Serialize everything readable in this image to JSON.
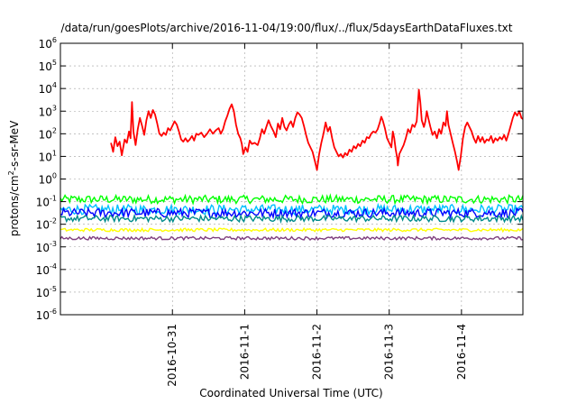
{
  "chart_data": {
    "type": "line",
    "title": "/data/run/goesPlots/archive/2016-11-04/19:00/flux/../flux/5daysEarthDataFluxes.txt",
    "xlabel": "Coordinated Universal Time (UTC)",
    "ylabel": {
      "prefix": "protons/cm",
      "sup": "2",
      "suffix": "-s-sr-MeV"
    },
    "y_scale": "log",
    "ylim_exp": [
      -6,
      6
    ],
    "y_tick_exponents": [
      -6,
      -5,
      -4,
      -3,
      -2,
      -1,
      0,
      1,
      2,
      3,
      4,
      5,
      6
    ],
    "y_tick_base": "10",
    "x_range_days": [
      -1.55,
      4.85
    ],
    "x_ticks": [
      {
        "label": "2016-10-31",
        "day": 0
      },
      {
        "label": "2016-11-1",
        "day": 1
      },
      {
        "label": "2016-11-2",
        "day": 2
      },
      {
        "label": "2016-11-3",
        "day": 3
      },
      {
        "label": "2016-11-4",
        "day": 4
      }
    ],
    "grid": true,
    "series": [
      {
        "color": "#ff0000",
        "points": [
          [
            -0.85,
            1.6
          ],
          [
            -0.82,
            1.2
          ],
          [
            -0.79,
            1.85
          ],
          [
            -0.76,
            1.45
          ],
          [
            -0.73,
            1.65
          ],
          [
            -0.7,
            1.05
          ],
          [
            -0.66,
            1.75
          ],
          [
            -0.63,
            1.6
          ],
          [
            -0.6,
            2.1
          ],
          [
            -0.58,
            1.8
          ],
          [
            -0.56,
            3.4
          ],
          [
            -0.54,
            2.1
          ],
          [
            -0.51,
            1.5
          ],
          [
            -0.48,
            2.2
          ],
          [
            -0.45,
            2.7
          ],
          [
            -0.42,
            2.35
          ],
          [
            -0.39,
            1.95
          ],
          [
            -0.36,
            2.6
          ],
          [
            -0.33,
            3.0
          ],
          [
            -0.3,
            2.7
          ],
          [
            -0.27,
            3.05
          ],
          [
            -0.24,
            2.85
          ],
          [
            -0.21,
            2.45
          ],
          [
            -0.18,
            2.0
          ],
          [
            -0.15,
            1.9
          ],
          [
            -0.12,
            2.05
          ],
          [
            -0.09,
            1.95
          ],
          [
            -0.06,
            2.25
          ],
          [
            -0.03,
            2.15
          ],
          [
            0.0,
            2.35
          ],
          [
            0.03,
            2.55
          ],
          [
            0.06,
            2.4
          ],
          [
            0.09,
            2.1
          ],
          [
            0.12,
            1.75
          ],
          [
            0.15,
            1.65
          ],
          [
            0.18,
            1.8
          ],
          [
            0.21,
            1.65
          ],
          [
            0.24,
            1.75
          ],
          [
            0.27,
            1.9
          ],
          [
            0.3,
            1.7
          ],
          [
            0.33,
            2.0
          ],
          [
            0.36,
            1.95
          ],
          [
            0.4,
            2.05
          ],
          [
            0.44,
            1.85
          ],
          [
            0.48,
            2.0
          ],
          [
            0.52,
            2.2
          ],
          [
            0.56,
            2.0
          ],
          [
            0.6,
            2.15
          ],
          [
            0.64,
            2.25
          ],
          [
            0.67,
            2.0
          ],
          [
            0.7,
            2.2
          ],
          [
            0.73,
            2.55
          ],
          [
            0.76,
            2.8
          ],
          [
            0.79,
            3.1
          ],
          [
            0.82,
            3.3
          ],
          [
            0.85,
            3.0
          ],
          [
            0.88,
            2.4
          ],
          [
            0.91,
            2.0
          ],
          [
            0.94,
            1.8
          ],
          [
            0.96,
            1.55
          ],
          [
            0.98,
            1.1
          ],
          [
            1.01,
            1.4
          ],
          [
            1.04,
            1.2
          ],
          [
            1.07,
            1.7
          ],
          [
            1.1,
            1.55
          ],
          [
            1.14,
            1.6
          ],
          [
            1.18,
            1.5
          ],
          [
            1.21,
            1.8
          ],
          [
            1.24,
            2.2
          ],
          [
            1.27,
            2.0
          ],
          [
            1.3,
            2.3
          ],
          [
            1.33,
            2.6
          ],
          [
            1.36,
            2.35
          ],
          [
            1.4,
            2.1
          ],
          [
            1.43,
            1.85
          ],
          [
            1.46,
            2.45
          ],
          [
            1.49,
            2.2
          ],
          [
            1.52,
            2.7
          ],
          [
            1.55,
            2.3
          ],
          [
            1.58,
            2.15
          ],
          [
            1.61,
            2.4
          ],
          [
            1.64,
            2.55
          ],
          [
            1.67,
            2.3
          ],
          [
            1.7,
            2.7
          ],
          [
            1.73,
            2.95
          ],
          [
            1.76,
            2.85
          ],
          [
            1.79,
            2.7
          ],
          [
            1.82,
            2.35
          ],
          [
            1.85,
            1.95
          ],
          [
            1.88,
            1.6
          ],
          [
            1.91,
            1.4
          ],
          [
            1.94,
            1.2
          ],
          [
            1.97,
            0.8
          ],
          [
            2.0,
            0.4
          ],
          [
            2.03,
            1.1
          ],
          [
            2.06,
            1.6
          ],
          [
            2.09,
            2.0
          ],
          [
            2.12,
            2.5
          ],
          [
            2.15,
            2.1
          ],
          [
            2.18,
            2.3
          ],
          [
            2.21,
            1.8
          ],
          [
            2.24,
            1.4
          ],
          [
            2.27,
            1.2
          ],
          [
            2.3,
            1.0
          ],
          [
            2.33,
            1.1
          ],
          [
            2.36,
            0.95
          ],
          [
            2.39,
            1.15
          ],
          [
            2.42,
            1.05
          ],
          [
            2.45,
            1.3
          ],
          [
            2.48,
            1.2
          ],
          [
            2.51,
            1.45
          ],
          [
            2.54,
            1.35
          ],
          [
            2.57,
            1.55
          ],
          [
            2.6,
            1.45
          ],
          [
            2.63,
            1.7
          ],
          [
            2.66,
            1.6
          ],
          [
            2.69,
            1.85
          ],
          [
            2.72,
            1.8
          ],
          [
            2.75,
            2.0
          ],
          [
            2.78,
            2.1
          ],
          [
            2.81,
            2.05
          ],
          [
            2.84,
            2.2
          ],
          [
            2.87,
            2.5
          ],
          [
            2.89,
            2.75
          ],
          [
            2.91,
            2.6
          ],
          [
            2.94,
            2.25
          ],
          [
            2.97,
            1.8
          ],
          [
            3.0,
            1.6
          ],
          [
            3.03,
            1.4
          ],
          [
            3.05,
            2.1
          ],
          [
            3.07,
            1.8
          ],
          [
            3.09,
            1.3
          ],
          [
            3.11,
            0.95
          ],
          [
            3.12,
            0.6
          ],
          [
            3.14,
            1.1
          ],
          [
            3.17,
            1.3
          ],
          [
            3.2,
            1.5
          ],
          [
            3.23,
            1.8
          ],
          [
            3.26,
            2.2
          ],
          [
            3.29,
            2.05
          ],
          [
            3.32,
            2.4
          ],
          [
            3.35,
            2.3
          ],
          [
            3.38,
            2.55
          ],
          [
            3.41,
            3.95
          ],
          [
            3.43,
            3.4
          ],
          [
            3.45,
            2.6
          ],
          [
            3.48,
            2.3
          ],
          [
            3.5,
            2.55
          ],
          [
            3.52,
            3.0
          ],
          [
            3.54,
            2.7
          ],
          [
            3.57,
            2.3
          ],
          [
            3.6,
            1.95
          ],
          [
            3.63,
            2.1
          ],
          [
            3.66,
            1.8
          ],
          [
            3.69,
            2.2
          ],
          [
            3.72,
            2.0
          ],
          [
            3.75,
            2.5
          ],
          [
            3.78,
            2.35
          ],
          [
            3.8,
            3.0
          ],
          [
            3.82,
            2.4
          ],
          [
            3.85,
            2.0
          ],
          [
            3.88,
            1.6
          ],
          [
            3.91,
            1.2
          ],
          [
            3.94,
            0.75
          ],
          [
            3.96,
            0.4
          ],
          [
            3.99,
            1.0
          ],
          [
            4.02,
            1.8
          ],
          [
            4.05,
            2.3
          ],
          [
            4.08,
            2.5
          ],
          [
            4.11,
            2.3
          ],
          [
            4.14,
            2.1
          ],
          [
            4.17,
            1.8
          ],
          [
            4.2,
            1.6
          ],
          [
            4.23,
            1.9
          ],
          [
            4.26,
            1.65
          ],
          [
            4.29,
            1.85
          ],
          [
            4.32,
            1.6
          ],
          [
            4.35,
            1.75
          ],
          [
            4.38,
            1.7
          ],
          [
            4.41,
            1.9
          ],
          [
            4.44,
            1.6
          ],
          [
            4.47,
            1.8
          ],
          [
            4.5,
            1.7
          ],
          [
            4.53,
            1.85
          ],
          [
            4.56,
            1.75
          ],
          [
            4.59,
            1.95
          ],
          [
            4.62,
            1.7
          ],
          [
            4.65,
            2.0
          ],
          [
            4.68,
            2.35
          ],
          [
            4.71,
            2.7
          ],
          [
            4.74,
            2.95
          ],
          [
            4.77,
            2.8
          ],
          [
            4.8,
            3.0
          ],
          [
            4.83,
            2.7
          ],
          [
            4.85,
            2.65
          ]
        ]
      },
      {
        "color": "#00ff00",
        "level": -0.9,
        "amp": 0.18
      },
      {
        "color": "#00bfff",
        "level": -1.35,
        "amp": 0.22
      },
      {
        "color": "#0000ff",
        "level": -1.5,
        "amp": 0.2
      },
      {
        "color": "#008b8b",
        "level": -1.75,
        "amp": 0.14
      },
      {
        "color": "#ffff00",
        "level": -2.25,
        "amp": 0.07
      },
      {
        "color": "#7f3f7f",
        "level": -2.62,
        "amp": 0.07
      }
    ]
  }
}
